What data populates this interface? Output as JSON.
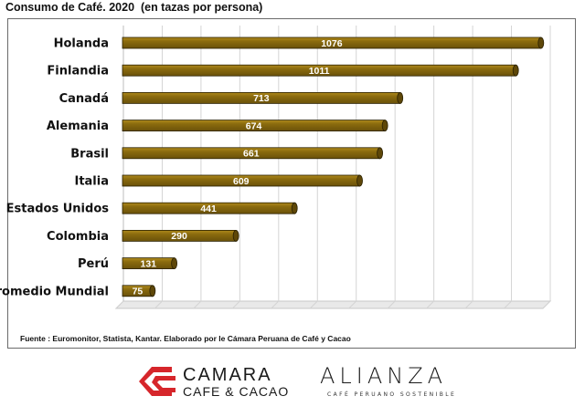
{
  "title": "Consumo de Café. 2020  (en tazas por persona)",
  "chart_data": {
    "type": "bar",
    "orientation": "horizontal",
    "categories": [
      "Holanda",
      "Finlandia",
      "Canadá",
      "Alemania",
      "Brasil",
      "Italia",
      "Estados Unidos",
      "Colombia",
      "Perú",
      "Promedio Mundial"
    ],
    "values": [
      1076,
      1011,
      713,
      674,
      661,
      609,
      441,
      290,
      131,
      75
    ],
    "xlim": [
      0,
      1100
    ],
    "grid": true,
    "legend": "none",
    "bar_color": "#8b6b0e"
  },
  "source": "Fuente : Euromonitor, Statista, Kantar. Elaborado por le Cámara Peruana de Café y Cacao",
  "logos": {
    "camara_line1": "CAMARA",
    "camara_line2": "CAFE & CACAO",
    "alianza_name": "ALIANZA",
    "alianza_tagline": "CAFÉ PERUANO SOSTENIBLE"
  },
  "colors": {
    "camara_red": "#d6262b"
  }
}
